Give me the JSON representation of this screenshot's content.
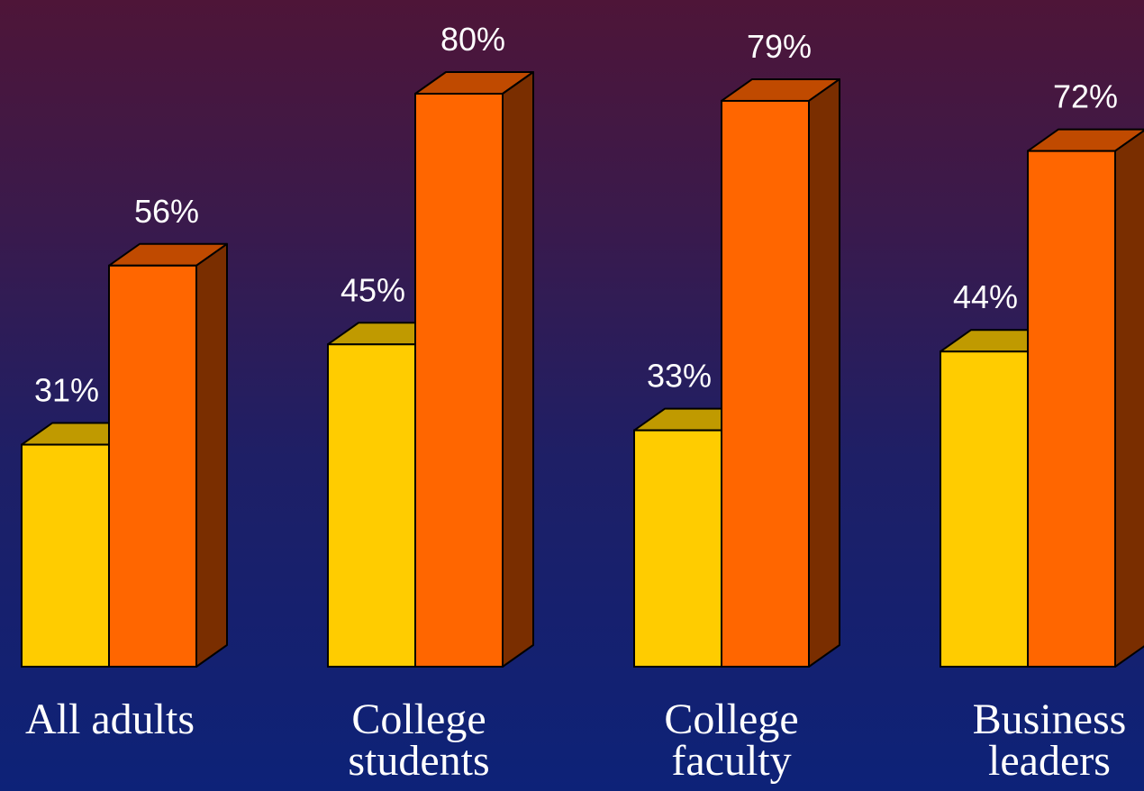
{
  "chart_data": {
    "type": "bar",
    "title": "",
    "xlabel": "",
    "ylabel": "",
    "ylim": [
      0,
      100
    ],
    "grid": false,
    "legend": "none",
    "categories": [
      [
        "All adults"
      ],
      [
        "College",
        "students"
      ],
      [
        "College",
        "faculty"
      ],
      [
        "Business",
        "leaders"
      ]
    ],
    "series": [
      {
        "values": [
          31,
          45,
          33,
          44
        ],
        "labels": [
          "31%",
          "45%",
          "33%",
          "44%"
        ]
      },
      {
        "values": [
          56,
          80,
          79,
          72
        ],
        "labels": [
          "56%",
          "80%",
          "79%",
          "72%"
        ]
      }
    ],
    "colors": {
      "series1_front": "#ffcc00",
      "series1_top": "#c09a00",
      "series2_front": "#ff6600",
      "series2_top": "#c04a00",
      "series2_side": "#7a2e00",
      "text": "#ffffff"
    }
  }
}
